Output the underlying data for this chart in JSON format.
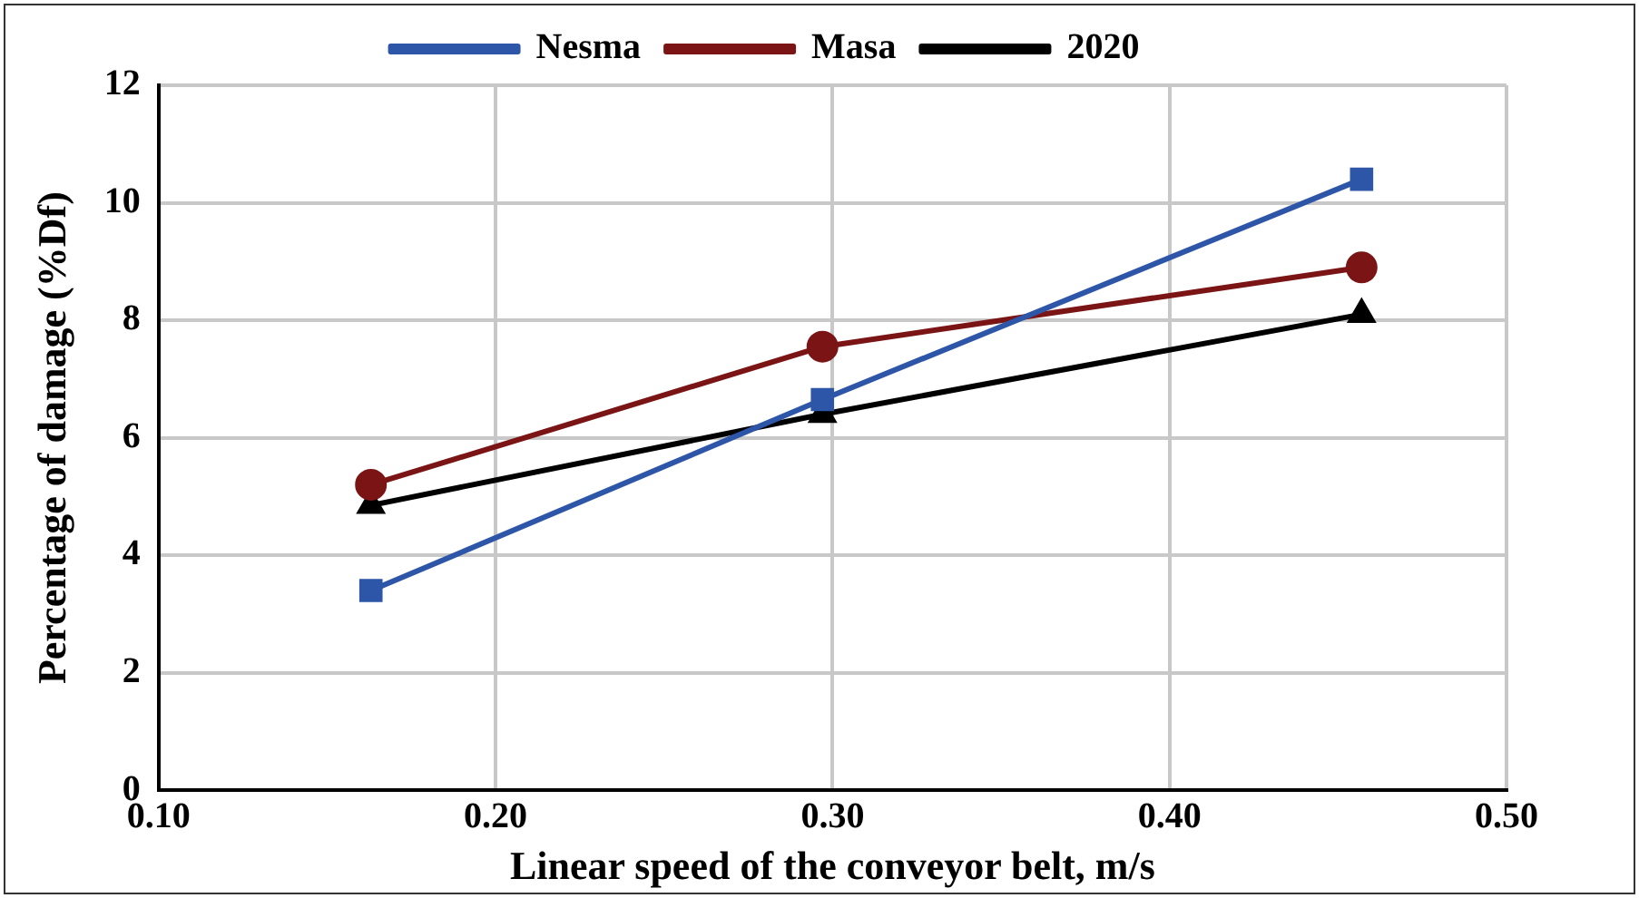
{
  "chart_data": {
    "type": "line",
    "xlabel": "Linear speed of the conveyor belt, m/s",
    "ylabel": "Percentage of damage (%Df)",
    "xlim": [
      0.1,
      0.5
    ],
    "xticks": [
      {
        "value": 0.1,
        "label": "0.10"
      },
      {
        "value": 0.2,
        "label": "0.20"
      },
      {
        "value": 0.3,
        "label": "0.30"
      },
      {
        "value": 0.4,
        "label": "0.40"
      },
      {
        "value": 0.5,
        "label": "0.50"
      }
    ],
    "ylim": [
      0,
      12
    ],
    "yticks": [
      0,
      2,
      4,
      6,
      8,
      10,
      12
    ],
    "grid": true,
    "legend": "top",
    "line_style": "solid",
    "series": [
      {
        "name": "Nesma",
        "color": "#2e56a8",
        "marker": "square",
        "x": [
          0.163,
          0.297,
          0.457
        ],
        "values": [
          3.4,
          6.65,
          10.4
        ]
      },
      {
        "name": "Masa",
        "color": "#7b1414",
        "marker": "circle",
        "x": [
          0.163,
          0.297,
          0.457
        ],
        "values": [
          5.2,
          7.55,
          8.9
        ]
      },
      {
        "name": "2020",
        "color": "#000000",
        "marker": "triangle",
        "x": [
          0.163,
          0.297,
          0.457
        ],
        "values": [
          4.85,
          6.4,
          8.1
        ]
      }
    ]
  }
}
